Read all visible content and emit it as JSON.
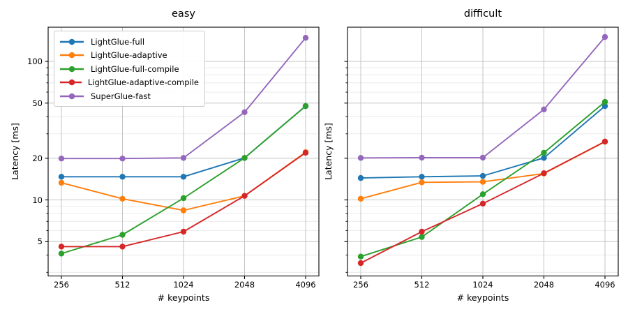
{
  "figure": {
    "background": "#ffffff",
    "grid_major_color": "#c4c4c4",
    "grid_minor_color": "#e8e8e8",
    "spine_color": "#000000"
  },
  "chart_data": [
    {
      "type": "line",
      "title": "easy",
      "xlabel": "# keypoints",
      "ylabel": "Latency [ms]",
      "x": [
        256,
        512,
        1024,
        2048,
        4096
      ],
      "x_tick_labels": [
        "256",
        "512",
        "1024",
        "2048",
        "4096"
      ],
      "xscale": "log2",
      "yscale": "log10",
      "ylim": [
        2.8,
        176
      ],
      "yticks": [
        100,
        50,
        20,
        10,
        5
      ],
      "minor_gridlines": [
        3,
        4,
        6,
        7,
        8,
        9,
        30,
        40,
        60,
        70,
        80,
        90
      ],
      "grid": true,
      "show_ytick_labels": true,
      "show_legend": true,
      "legend_position": "upper-left",
      "series": [
        {
          "name": "LightGlue-full",
          "color": "#1f77b4",
          "values": [
            14.7,
            14.7,
            14.7,
            20.1,
            47.6
          ]
        },
        {
          "name": "LightGlue-adaptive",
          "color": "#ff7f0e",
          "values": [
            13.3,
            10.2,
            8.4,
            10.7,
            22.1
          ]
        },
        {
          "name": "LightGlue-full-compile",
          "color": "#2ca02c",
          "values": [
            4.1,
            5.6,
            10.3,
            20.1,
            47.6
          ]
        },
        {
          "name": "LightGlue-adaptive-compile",
          "color": "#d62728",
          "values": [
            4.6,
            4.6,
            5.9,
            10.7,
            21.9
          ]
        },
        {
          "name": "SuperGlue-fast",
          "color": "#9467bd",
          "values": [
            19.9,
            19.9,
            20.1,
            43.0,
            148.0
          ]
        }
      ]
    },
    {
      "type": "line",
      "title": "difficult",
      "xlabel": "# keypoints",
      "ylabel": "Latency [ms]",
      "x": [
        256,
        512,
        1024,
        2048,
        4096
      ],
      "x_tick_labels": [
        "256",
        "512",
        "1024",
        "2048",
        "4096"
      ],
      "xscale": "log2",
      "yscale": "log10",
      "ylim": [
        2.8,
        176
      ],
      "yticks": [
        100,
        50,
        20,
        10,
        5
      ],
      "minor_gridlines": [
        3,
        4,
        6,
        7,
        8,
        9,
        30,
        40,
        60,
        70,
        80,
        90
      ],
      "grid": true,
      "show_ytick_labels": false,
      "show_legend": false,
      "legend_position": "none",
      "series": [
        {
          "name": "LightGlue-full",
          "color": "#1f77b4",
          "values": [
            14.4,
            14.7,
            14.9,
            20.1,
            47.6
          ]
        },
        {
          "name": "LightGlue-adaptive",
          "color": "#ff7f0e",
          "values": [
            10.2,
            13.4,
            13.5,
            15.5,
            26.3
          ]
        },
        {
          "name": "LightGlue-full-compile",
          "color": "#2ca02c",
          "values": [
            3.9,
            5.4,
            11.0,
            21.9,
            51.0
          ]
        },
        {
          "name": "LightGlue-adaptive-compile",
          "color": "#d62728",
          "values": [
            3.5,
            5.9,
            9.4,
            15.6,
            26.4
          ]
        },
        {
          "name": "SuperGlue-fast",
          "color": "#9467bd",
          "values": [
            20.1,
            20.2,
            20.2,
            45.0,
            150.0
          ]
        }
      ]
    }
  ]
}
